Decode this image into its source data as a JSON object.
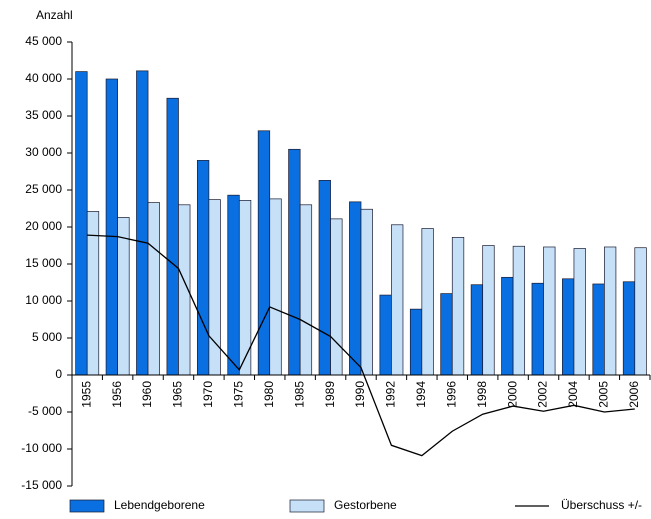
{
  "chart_data": {
    "type": "bar-line",
    "y_label": "Anzahl",
    "categories": [
      "1955",
      "1956",
      "1960",
      "1965",
      "1970",
      "1975",
      "1980",
      "1985",
      "1989",
      "1990",
      "1992",
      "1994",
      "1996",
      "1998",
      "2000",
      "2002",
      "2004",
      "2005",
      "2006"
    ],
    "series": [
      {
        "name": "Lebendgeborene",
        "type": "bar",
        "color": "#0a6fe0",
        "values": [
          41000,
          40000,
          41100,
          37400,
          29000,
          24300,
          33000,
          30500,
          26300,
          23400,
          10800,
          8900,
          11000,
          12200,
          13200,
          12400,
          13000,
          12300,
          12600
        ]
      },
      {
        "name": "Gestorbene",
        "type": "bar",
        "color": "#c6e0f8",
        "values": [
          22100,
          21300,
          23300,
          23000,
          23700,
          23600,
          23800,
          23000,
          21100,
          22400,
          20300,
          19800,
          18600,
          17500,
          17400,
          17300,
          17100,
          17300,
          17200
        ]
      },
      {
        "name": "Überschuss +/-",
        "type": "line",
        "color": "#000000",
        "values": [
          18900,
          18700,
          17800,
          14400,
          5300,
          700,
          9200,
          7500,
          5200,
          1000,
          -9500,
          -10900,
          -7600,
          -5300,
          -4200,
          -4900,
          -4100,
          -5000,
          -4600
        ]
      }
    ],
    "ylim": [
      -15000,
      45000
    ],
    "yticks": [
      {
        "value": -15000,
        "label": "-15 000"
      },
      {
        "value": -10000,
        "label": "-10 000"
      },
      {
        "value": -5000,
        "label": "-5 000"
      },
      0,
      {
        "value": 5000,
        "label": "5 000"
      },
      {
        "value": 10000,
        "label": "10 000"
      },
      {
        "value": 15000,
        "label": "15 000"
      },
      {
        "value": 20000,
        "label": "20 000"
      },
      {
        "value": 25000,
        "label": "25 000"
      },
      {
        "value": 30000,
        "label": "30 000"
      },
      {
        "value": 35000,
        "label": "35 000"
      },
      {
        "value": 40000,
        "label": "40 000"
      },
      {
        "value": 45000,
        "label": "45 000"
      }
    ],
    "grid": false
  }
}
